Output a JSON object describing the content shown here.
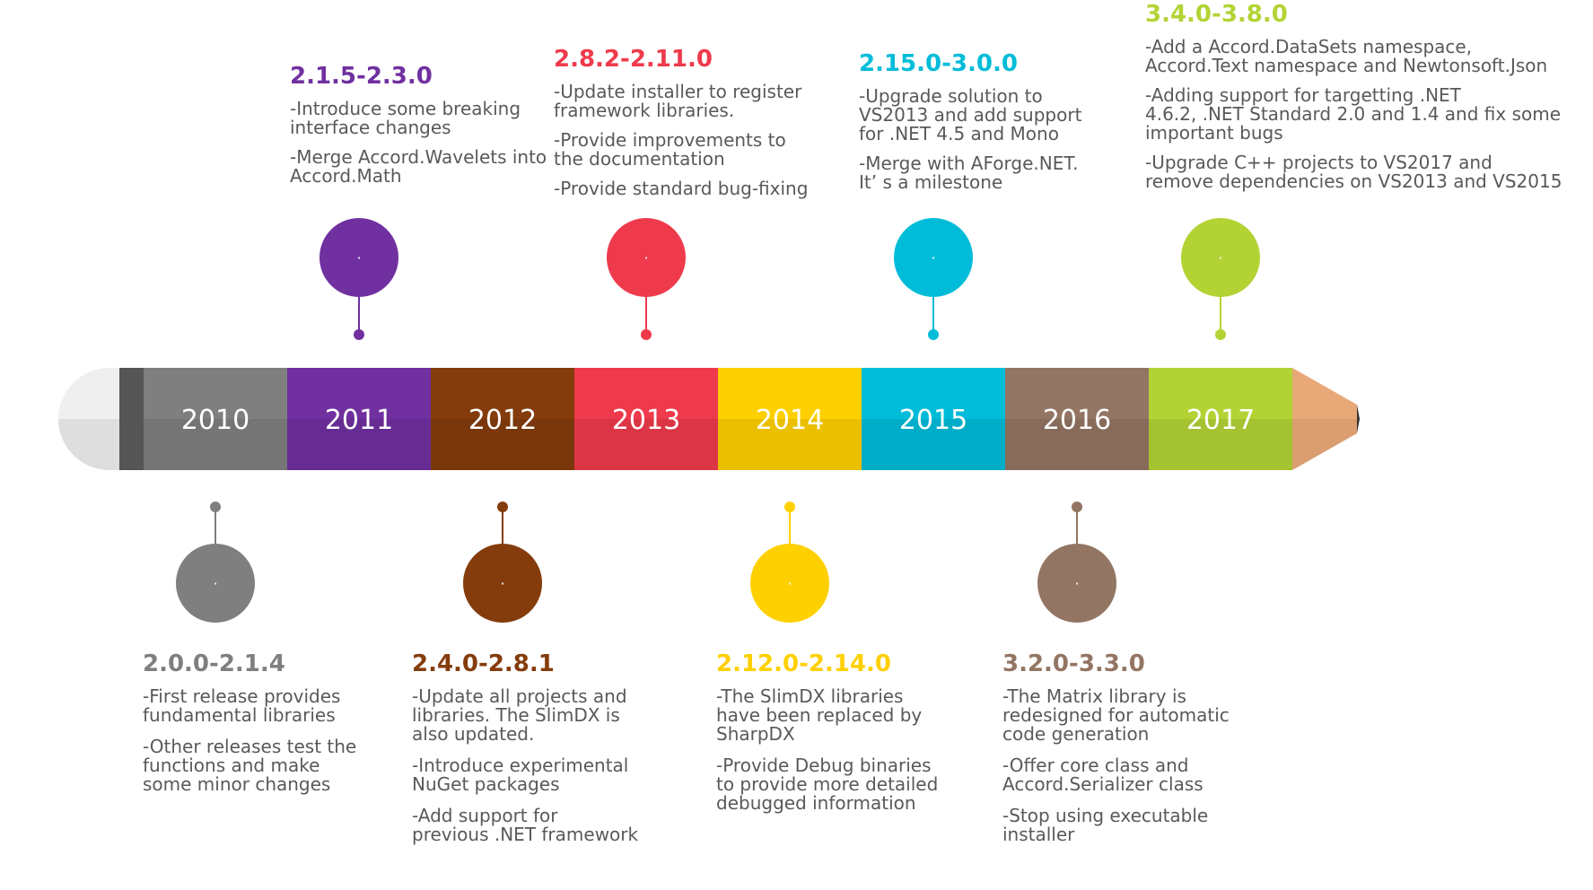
{
  "timeline": {
    "years": [
      {
        "label": "2010",
        "color": "#7f7f7f"
      },
      {
        "label": "2011",
        "color": "#7030a0"
      },
      {
        "label": "2012",
        "color": "#843c0c"
      },
      {
        "label": "2013",
        "color": "#ef3a4c"
      },
      {
        "label": "2014",
        "color": "#ffd000"
      },
      {
        "label": "2015",
        "color": "#00bcd9"
      },
      {
        "label": "2016",
        "color": "#937563"
      },
      {
        "label": "2017",
        "color": "#b3d335"
      }
    ],
    "milestones": [
      {
        "year": "2010",
        "position": "bottom",
        "color": "#7f7f7f",
        "bubble_text": "·",
        "version": "2.0.0-2.1.4",
        "notes": [
          "-First release provides\nfundamental libraries",
          "-Other releases test the\nfunctions and make\nsome minor changes"
        ]
      },
      {
        "year": "2011",
        "position": "top",
        "color": "#7030a0",
        "bubble_text": "·",
        "version": "2.1.5-2.3.0",
        "notes": [
          "-Introduce some breaking\ninterface changes",
          "-Merge Accord.Wavelets into\nAccord.Math"
        ]
      },
      {
        "year": "2012",
        "position": "bottom",
        "color": "#843c0c",
        "bubble_text": "·",
        "version": "2.4.0-2.8.1",
        "notes": [
          "-Update all projects and\nlibraries. The SlimDX is\nalso updated.",
          "-Introduce experimental\nNuGet packages",
          "-Add support for\nprevious .NET framework"
        ]
      },
      {
        "year": "2013",
        "position": "top",
        "color": "#ef3a4c",
        "bubble_text": "·",
        "version": "2.8.2-2.11.0",
        "notes": [
          "-Update installer to register\nframework libraries.",
          "-Provide improvements to\nthe documentation",
          "-Provide standard bug-fixing"
        ]
      },
      {
        "year": "2014",
        "position": "bottom",
        "color": "#ffd000",
        "bubble_text": "·",
        "version": "2.12.0-2.14.0",
        "notes": [
          "-The SlimDX libraries\nhave been replaced by\nSharpDX",
          "-Provide Debug binaries\nto provide more detailed\ndebugged information"
        ]
      },
      {
        "year": "2015",
        "position": "top",
        "color": "#00bcd9",
        "bubble_text": "·",
        "version": "2.15.0-3.0.0",
        "notes": [
          "-Upgrade solution to\nVS2013 and add support\nfor .NET 4.5 and Mono",
          "-Merge with AForge.NET.\nIt’ s a milestone"
        ]
      },
      {
        "year": "2016",
        "position": "bottom",
        "color": "#937563",
        "bubble_text": "·",
        "version": "3.2.0-3.3.0",
        "notes": [
          "-The Matrix library is\nredesigned for automatic\ncode generation",
          "-Offer core class and\nAccord.Serializer class",
          "-Stop using executable\ninstaller"
        ]
      },
      {
        "year": "2017",
        "position": "top",
        "color": "#b3d335",
        "bubble_text": "·",
        "version": "3.4.0-3.8.0",
        "notes": [
          "-Add a Accord.DataSets namespace,\nAccord.Text namespace and Newtonsoft.Json",
          "-Adding support for targetting .NET\n4.6.2, .NET Standard 2.0 and 1.4 and fix some\nimportant bugs",
          "-Upgrade C++ projects to VS2017 and\nremove dependencies on VS2013 and VS2015"
        ]
      }
    ],
    "pencil_colors": {
      "eraser_light": "#efefef",
      "eraser_dark": "#dedede",
      "ferrule": "#555555",
      "wood": "#e8a878",
      "lead": "#333333"
    }
  }
}
